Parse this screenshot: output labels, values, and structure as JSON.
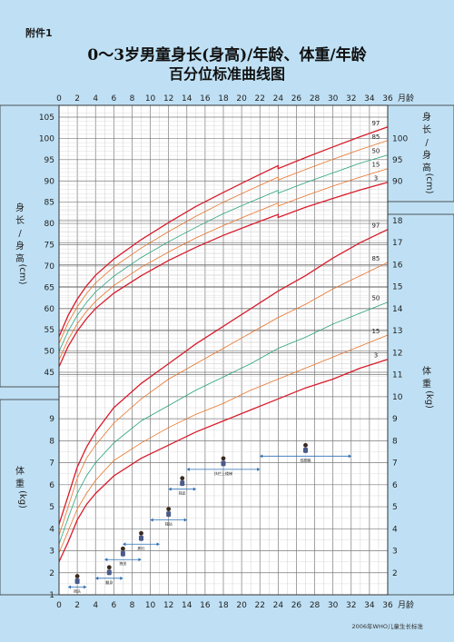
{
  "header": {
    "appendix": "附件1",
    "title_line1": "0～3岁男童身长(身高)/年龄、体重/年龄",
    "title_line2": "百分位标准曲线图"
  },
  "footer": {
    "credit": "2006年WHO儿童生长标准"
  },
  "axes": {
    "top_label": "月龄",
    "bottom_label": "月龄",
    "left_length_label": [
      "身",
      "长",
      "/",
      "身",
      "高",
      "(cm)"
    ],
    "right_length_label": [
      "身",
      "长",
      "/",
      "身",
      "高",
      "(cm)"
    ],
    "left_weight_label": [
      "体",
      "重",
      "(kg)"
    ],
    "right_weight_label": [
      "体",
      "重",
      "(kg)"
    ]
  },
  "colors": {
    "p3": "#d81c2c",
    "p15": "#e8742a",
    "p50": "#2aa37c",
    "p85": "#e8742a",
    "p97": "#d81c2c",
    "grid": "#8a8a8a",
    "milestone_arrow": "#2a6fb5",
    "plot_bg": "#ffffff",
    "page_bg": "#bfe0f4"
  },
  "chart_data": [
    {
      "type": "line",
      "title": "身长(身高)/年龄",
      "xlabel": "月龄",
      "ylabel": "身长/身高 (cm)",
      "xlim": [
        0,
        36
      ],
      "ylim": [
        45,
        105
      ],
      "x_ticks": [
        0,
        2,
        4,
        6,
        8,
        10,
        12,
        14,
        16,
        18,
        20,
        22,
        24,
        26,
        28,
        30,
        32,
        34,
        36
      ],
      "y_ticks_left": [
        45,
        50,
        55,
        60,
        65,
        70,
        75,
        80,
        85,
        90,
        95,
        100,
        105
      ],
      "y_ticks_right": [
        90,
        95,
        100
      ],
      "grid": true,
      "series": [
        {
          "name": "3",
          "x": [
            0,
            1,
            2,
            3,
            4,
            6,
            9,
            12,
            15,
            18,
            21,
            24,
            24,
            27,
            30,
            33,
            36
          ],
          "values": [
            46.3,
            51.1,
            54.7,
            57.6,
            60.0,
            63.6,
            67.7,
            71.3,
            74.4,
            77.2,
            79.7,
            82.1,
            81.4,
            83.8,
            85.9,
            87.9,
            89.7
          ]
        },
        {
          "name": "15",
          "x": [
            0,
            1,
            2,
            3,
            4,
            6,
            9,
            12,
            15,
            18,
            21,
            24,
            24,
            27,
            30,
            33,
            36
          ],
          "values": [
            47.9,
            52.7,
            56.4,
            59.3,
            61.7,
            65.4,
            69.7,
            73.3,
            76.6,
            79.5,
            82.2,
            84.8,
            84.1,
            86.5,
            88.8,
            90.9,
            92.9
          ]
        },
        {
          "name": "50",
          "x": [
            0,
            1,
            2,
            3,
            4,
            6,
            9,
            12,
            15,
            18,
            21,
            24,
            24,
            27,
            30,
            33,
            36
          ],
          "values": [
            49.9,
            54.7,
            58.4,
            61.4,
            63.9,
            67.6,
            72.0,
            75.7,
            79.1,
            82.3,
            85.1,
            87.8,
            87.1,
            89.6,
            91.9,
            94.2,
            96.1
          ]
        },
        {
          "name": "85",
          "x": [
            0,
            1,
            2,
            3,
            4,
            6,
            9,
            12,
            15,
            18,
            21,
            24,
            24,
            27,
            30,
            33,
            36
          ],
          "values": [
            51.8,
            56.7,
            60.4,
            63.5,
            66.0,
            69.8,
            74.2,
            78.1,
            81.7,
            85.0,
            88.0,
            90.9,
            90.2,
            92.7,
            95.1,
            97.4,
            99.5
          ]
        },
        {
          "name": "97",
          "x": [
            0,
            1,
            2,
            3,
            4,
            6,
            9,
            12,
            15,
            18,
            21,
            24,
            24,
            27,
            30,
            33,
            36
          ],
          "values": [
            53.4,
            58.4,
            62.2,
            65.3,
            67.8,
            71.6,
            76.2,
            80.2,
            84.0,
            87.3,
            90.5,
            93.6,
            92.9,
            95.5,
            98.0,
            100.4,
            102.7
          ]
        }
      ]
    },
    {
      "type": "line",
      "title": "体重/年龄",
      "xlabel": "月龄",
      "ylabel": "体重 (kg)",
      "xlim": [
        0,
        36
      ],
      "ylim": [
        1,
        18
      ],
      "x_ticks": [
        0,
        2,
        4,
        6,
        8,
        10,
        12,
        14,
        16,
        18,
        20,
        22,
        24,
        26,
        28,
        30,
        32,
        34,
        36
      ],
      "y_ticks_left": [
        1,
        2,
        3,
        4,
        5,
        6,
        7,
        8,
        9
      ],
      "y_ticks_right": [
        2,
        3,
        4,
        5,
        6,
        7,
        8,
        9,
        10,
        11,
        12,
        13,
        14,
        15,
        16,
        17,
        18
      ],
      "grid": true,
      "series": [
        {
          "name": "3",
          "x": [
            0,
            1,
            2,
            3,
            4,
            6,
            9,
            12,
            15,
            18,
            21,
            24,
            27,
            30,
            33,
            36
          ],
          "values": [
            2.5,
            3.4,
            4.4,
            5.1,
            5.6,
            6.4,
            7.2,
            7.8,
            8.4,
            8.9,
            9.4,
            9.9,
            10.4,
            10.8,
            11.3,
            11.7
          ]
        },
        {
          "name": "15",
          "x": [
            0,
            1,
            2,
            3,
            4,
            6,
            9,
            12,
            15,
            18,
            21,
            24,
            27,
            30,
            33,
            36
          ],
          "values": [
            2.9,
            3.9,
            4.9,
            5.6,
            6.2,
            7.1,
            7.9,
            8.6,
            9.2,
            9.7,
            10.3,
            10.8,
            11.3,
            11.8,
            12.3,
            12.8
          ]
        },
        {
          "name": "50",
          "x": [
            0,
            1,
            2,
            3,
            4,
            6,
            9,
            12,
            15,
            18,
            21,
            24,
            27,
            30,
            33,
            36
          ],
          "values": [
            3.3,
            4.5,
            5.6,
            6.4,
            7.0,
            7.9,
            8.9,
            9.6,
            10.3,
            10.9,
            11.5,
            12.2,
            12.7,
            13.3,
            13.8,
            14.3
          ]
        },
        {
          "name": "85",
          "x": [
            0,
            1,
            2,
            3,
            4,
            6,
            9,
            12,
            15,
            18,
            21,
            24,
            27,
            30,
            33,
            36
          ],
          "values": [
            3.7,
            5.0,
            6.3,
            7.2,
            7.8,
            8.8,
            9.9,
            10.8,
            11.5,
            12.2,
            12.9,
            13.6,
            14.2,
            14.9,
            15.5,
            16.1
          ]
        },
        {
          "name": "97",
          "x": [
            0,
            1,
            2,
            3,
            4,
            6,
            9,
            12,
            15,
            18,
            21,
            24,
            27,
            30,
            33,
            36
          ],
          "values": [
            4.2,
            5.5,
            6.8,
            7.7,
            8.4,
            9.5,
            10.6,
            11.5,
            12.4,
            13.2,
            14.0,
            14.8,
            15.5,
            16.3,
            17.0,
            17.6
          ]
        }
      ]
    }
  ],
  "milestones": [
    {
      "label": "抬头",
      "x_range": [
        1,
        3
      ],
      "level": 1.35,
      "icon": "baby-lifting-head-icon"
    },
    {
      "label": "翻身",
      "x_range": [
        4,
        7
      ],
      "level": 1.75,
      "icon": "baby-rolling-icon"
    },
    {
      "label": "独坐",
      "x_range": [
        5,
        9
      ],
      "level": 2.6,
      "icon": "baby-sitting-icon"
    },
    {
      "label": "爬行",
      "x_range": [
        7,
        11
      ],
      "level": 3.3,
      "icon": "baby-crawling-icon"
    },
    {
      "label": "独站",
      "x_range": [
        10,
        14
      ],
      "level": 4.4,
      "icon": "baby-standing-icon"
    },
    {
      "label": "独走",
      "x_range": [
        12,
        15
      ],
      "level": 5.8,
      "icon": "toddler-walking-icon"
    },
    {
      "label": "扶栏上楼梯",
      "x_range": [
        14,
        22
      ],
      "level": 6.7,
      "icon": "toddler-stairs-icon"
    },
    {
      "label": "双脚跳",
      "x_range": [
        22,
        32
      ],
      "level": 7.3,
      "icon": "toddler-jumping-icon"
    }
  ]
}
